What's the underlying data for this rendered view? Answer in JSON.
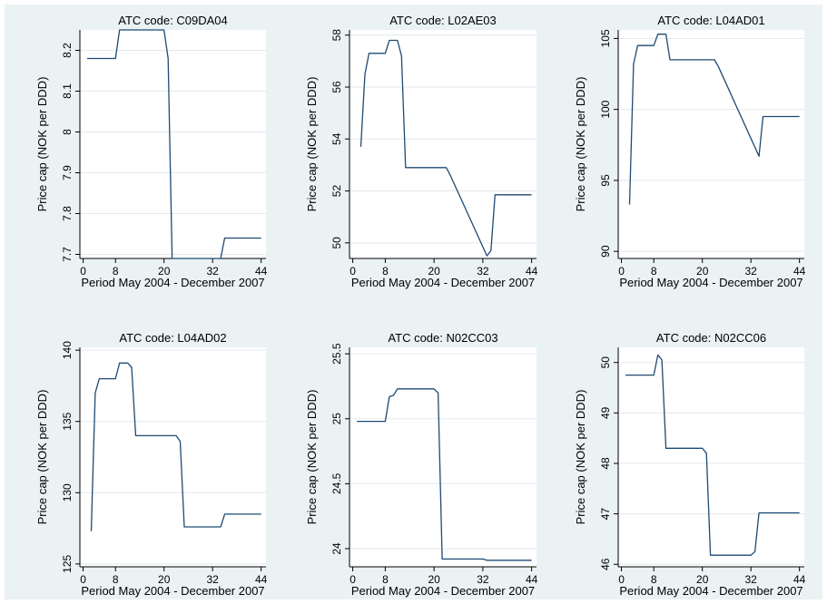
{
  "chart_data": [
    {
      "type": "line",
      "title": "ATC code: C09DA04",
      "xlabel": "Period May 2004 - December 2007",
      "ylabel": "Price cap (NOK per DDD)",
      "xlim": [
        1,
        44
      ],
      "ylim": [
        7.7,
        8.25
      ],
      "xticks": [
        0,
        8,
        20,
        32,
        44
      ],
      "yticks": [
        7.7,
        7.8,
        7.9,
        8,
        8.1,
        8.2
      ],
      "x": [
        1,
        8,
        9,
        20,
        21,
        22,
        34,
        35,
        44
      ],
      "y": [
        8.18,
        8.18,
        8.25,
        8.25,
        8.18,
        7.69,
        7.69,
        7.74,
        7.74
      ]
    },
    {
      "type": "line",
      "title": "ATC code: L02AE03",
      "xlabel": "Period May 2004 - December 2007",
      "ylabel": "Price cap (NOK per DDD)",
      "xlim": [
        1,
        44
      ],
      "ylim": [
        49.4,
        58
      ],
      "xticks": [
        0,
        8,
        20,
        32,
        44
      ],
      "yticks": [
        50,
        52,
        54,
        56,
        58
      ],
      "x": [
        2,
        3,
        4,
        8,
        9,
        11,
        12,
        13,
        23,
        24,
        33,
        34,
        35,
        44
      ],
      "y": [
        53.7,
        56.5,
        57.3,
        57.3,
        57.8,
        57.8,
        57.2,
        52.9,
        52.9,
        52.6,
        49.5,
        49.7,
        51.85,
        51.85
      ]
    },
    {
      "type": "line",
      "title": "ATC code: L04AD01",
      "xlabel": "Period May 2004 - December 2007",
      "ylabel": "Price cap (NOK per DDD)",
      "xlim": [
        1,
        44
      ],
      "ylim": [
        90,
        105.5
      ],
      "xticks": [
        0,
        8,
        20,
        32,
        44
      ],
      "yticks": [
        90,
        95,
        100,
        105
      ],
      "x": [
        2,
        3,
        4,
        8,
        9,
        11,
        12,
        23,
        24,
        34,
        35,
        44
      ],
      "y": [
        93.3,
        103.2,
        104.5,
        104.5,
        105.3,
        105.3,
        103.5,
        103.5,
        103,
        96.7,
        99.5,
        99.5
      ]
    },
    {
      "type": "line",
      "title": "ATC code: L04AD02",
      "xlabel": "Period May 2004 - December 2007",
      "ylabel": "Price cap (NOK per DDD)",
      "xlim": [
        1,
        44
      ],
      "ylim": [
        125,
        140
      ],
      "xticks": [
        0,
        8,
        20,
        32,
        44
      ],
      "yticks": [
        125,
        130,
        135,
        140
      ],
      "x": [
        2,
        3,
        4,
        8,
        9,
        11,
        12,
        13,
        23,
        24,
        25,
        33,
        34,
        35,
        44
      ],
      "y": [
        127.3,
        137,
        138,
        138,
        139.1,
        139.1,
        138.8,
        134,
        134,
        133.6,
        127.6,
        127.6,
        127.6,
        128.5,
        128.5
      ]
    },
    {
      "type": "line",
      "title": "ATC code: N02CC03",
      "xlabel": "Period May 2004 - December 2007",
      "ylabel": "Price cap (NOK per DDD)",
      "xlim": [
        1,
        44
      ],
      "ylim": [
        23.9,
        25.5
      ],
      "xticks": [
        0,
        8,
        20,
        32,
        44
      ],
      "yticks": [
        24,
        24.5,
        25,
        25.5
      ],
      "x": [
        1,
        8,
        9,
        10,
        11,
        20,
        21,
        22,
        32,
        33,
        44
      ],
      "y": [
        24.98,
        24.98,
        25.17,
        25.18,
        25.23,
        25.23,
        25.2,
        23.92,
        23.92,
        23.91,
        23.91
      ]
    },
    {
      "type": "line",
      "title": "ATC code: N02CC06",
      "xlabel": "Period May 2004 - December 2007",
      "ylabel": "Price cap (NOK per DDD)",
      "xlim": [
        1,
        44
      ],
      "ylim": [
        46,
        50.2
      ],
      "xticks": [
        0,
        8,
        20,
        32,
        44
      ],
      "yticks": [
        46,
        47,
        48,
        49,
        50
      ],
      "x": [
        1,
        8,
        9,
        10,
        11,
        20,
        21,
        22,
        32,
        33,
        34,
        44
      ],
      "y": [
        49.75,
        49.75,
        50.15,
        50.05,
        48.3,
        48.3,
        48.2,
        46.18,
        46.18,
        46.25,
        47.02,
        47.02
      ]
    }
  ]
}
